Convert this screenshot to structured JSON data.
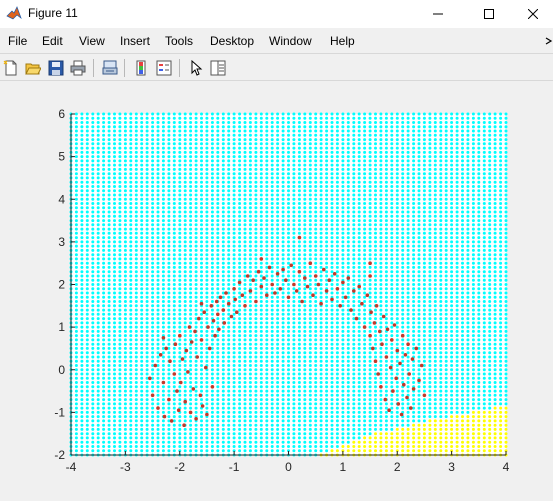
{
  "window": {
    "title": "Figure 11",
    "controls": {
      "minimize_icon": "minimize-icon",
      "maximize_icon": "maximize-icon",
      "close_icon": "close-icon"
    }
  },
  "menubar": {
    "items": [
      "File",
      "Edit",
      "View",
      "Insert",
      "Tools",
      "Desktop",
      "Window",
      "Help"
    ]
  },
  "toolbar": {
    "icons": [
      "new-figure-icon",
      "open-file-icon",
      "save-icon",
      "print-icon",
      "link-plot-icon",
      "colorbar-icon",
      "legend-icon",
      "edit-plot-icon",
      "property-editor-icon"
    ]
  },
  "colors": {
    "region_a": "#00ffff",
    "region_b": "#ffff00",
    "points": "#c0392b",
    "axes_bg": "#ffffff"
  },
  "chart_data": {
    "type": "scatter",
    "title": "",
    "xlabel": "",
    "ylabel": "",
    "xlim": [
      -4,
      4
    ],
    "ylim": [
      -2,
      6
    ],
    "xticks": [
      -4,
      -3,
      -2,
      -1,
      0,
      1,
      2,
      3,
      4
    ],
    "yticks": [
      -2,
      -1,
      0,
      1,
      2,
      3,
      4,
      5,
      6
    ],
    "grid": false,
    "background": {
      "type": "decision-region-grid",
      "x_step": 0.1,
      "y_step": 0.1,
      "regions": [
        {
          "color": "#00ffff"
        },
        {
          "color": "#ffff00",
          "boundary": [
            [
              0.6,
              -2.0
            ],
            [
              1.0,
              -1.75
            ],
            [
              1.6,
              -1.5
            ],
            [
              2.2,
              -1.3
            ],
            [
              2.8,
              -1.15
            ],
            [
              3.4,
              -1.0
            ],
            [
              4.0,
              -0.85
            ]
          ]
        }
      ]
    },
    "series": [
      {
        "color": "#c0392b",
        "marker": "dot",
        "points": [
          [
            -2.55,
            -0.2
          ],
          [
            -2.5,
            -0.6
          ],
          [
            -2.45,
            0.1
          ],
          [
            -2.4,
            -0.9
          ],
          [
            -2.35,
            0.35
          ],
          [
            -2.3,
            -0.3
          ],
          [
            -2.28,
            -1.1
          ],
          [
            -2.25,
            0.5
          ],
          [
            -2.2,
            -0.7
          ],
          [
            -2.18,
            0.2
          ],
          [
            -2.15,
            -1.2
          ],
          [
            -2.1,
            -0.1
          ],
          [
            -2.08,
            0.6
          ],
          [
            -2.05,
            -0.5
          ],
          [
            -2.02,
            -0.95
          ],
          [
            -2.0,
            0.8
          ],
          [
            -1.98,
            -0.3
          ],
          [
            -1.95,
            0.25
          ],
          [
            -1.92,
            -1.3
          ],
          [
            -1.9,
            -0.75
          ],
          [
            -1.88,
            0.45
          ],
          [
            -1.85,
            -0.05
          ],
          [
            -1.82,
            1.0
          ],
          [
            -1.8,
            -1.0
          ],
          [
            -1.78,
            0.65
          ],
          [
            -1.75,
            -0.45
          ],
          [
            -1.72,
            0.9
          ],
          [
            -1.7,
            -1.15
          ],
          [
            -1.68,
            0.3
          ],
          [
            -1.65,
            1.2
          ],
          [
            -1.62,
            -0.6
          ],
          [
            -1.6,
            0.7
          ],
          [
            -1.58,
            -0.85
          ],
          [
            -1.55,
            1.35
          ],
          [
            -1.52,
            0.05
          ],
          [
            -1.5,
            -1.05
          ],
          [
            -1.48,
            1.0
          ],
          [
            -1.45,
            0.5
          ],
          [
            -1.42,
            1.5
          ],
          [
            -1.4,
            -0.4
          ],
          [
            -1.38,
            1.15
          ],
          [
            -1.35,
            0.8
          ],
          [
            -1.32,
            1.6
          ],
          [
            -1.3,
            1.3
          ],
          [
            -1.28,
            0.95
          ],
          [
            -1.25,
            1.7
          ],
          [
            -1.2,
            1.4
          ],
          [
            -1.18,
            1.1
          ],
          [
            -1.15,
            1.8
          ],
          [
            -1.1,
            1.55
          ],
          [
            -1.05,
            1.25
          ],
          [
            -1.0,
            1.9
          ],
          [
            -0.98,
            1.65
          ],
          [
            -0.95,
            1.35
          ],
          [
            -0.9,
            2.05
          ],
          [
            -0.85,
            1.75
          ],
          [
            -0.8,
            1.5
          ],
          [
            -0.75,
            2.2
          ],
          [
            -0.7,
            1.85
          ],
          [
            -0.65,
            2.1
          ],
          [
            -0.6,
            1.6
          ],
          [
            -0.55,
            2.3
          ],
          [
            -0.5,
            1.95
          ],
          [
            -0.45,
            2.15
          ],
          [
            -0.4,
            1.75
          ],
          [
            -0.35,
            2.4
          ],
          [
            -0.3,
            2.0
          ],
          [
            -0.25,
            1.8
          ],
          [
            -0.2,
            2.25
          ],
          [
            -0.15,
            1.9
          ],
          [
            -0.1,
            2.35
          ],
          [
            -0.05,
            2.1
          ],
          [
            0.0,
            1.7
          ],
          [
            0.05,
            2.45
          ],
          [
            0.1,
            2.0
          ],
          [
            0.15,
            1.85
          ],
          [
            0.2,
            2.3
          ],
          [
            0.25,
            1.6
          ],
          [
            0.3,
            2.15
          ],
          [
            0.35,
            1.95
          ],
          [
            0.4,
            2.5
          ],
          [
            0.45,
            1.75
          ],
          [
            0.5,
            2.2
          ],
          [
            0.55,
            2.0
          ],
          [
            0.6,
            1.55
          ],
          [
            0.65,
            2.35
          ],
          [
            0.7,
            1.85
          ],
          [
            0.75,
            2.1
          ],
          [
            0.8,
            1.65
          ],
          [
            0.85,
            2.25
          ],
          [
            0.9,
            1.9
          ],
          [
            0.95,
            1.5
          ],
          [
            1.0,
            2.05
          ],
          [
            1.05,
            1.7
          ],
          [
            1.1,
            2.15
          ],
          [
            1.15,
            1.4
          ],
          [
            1.2,
            1.85
          ],
          [
            1.25,
            1.2
          ],
          [
            1.3,
            1.95
          ],
          [
            1.35,
            1.55
          ],
          [
            1.4,
            1.0
          ],
          [
            1.45,
            1.75
          ],
          [
            1.5,
            0.8
          ],
          [
            1.52,
            1.35
          ],
          [
            1.55,
            0.5
          ],
          [
            1.58,
            1.1
          ],
          [
            1.6,
            0.2
          ],
          [
            1.62,
            1.5
          ],
          [
            1.65,
            -0.1
          ],
          [
            1.68,
            0.9
          ],
          [
            1.7,
            -0.4
          ],
          [
            1.72,
            0.6
          ],
          [
            1.75,
            1.25
          ],
          [
            1.78,
            -0.7
          ],
          [
            1.8,
            0.3
          ],
          [
            1.82,
            0.95
          ],
          [
            1.85,
            -0.95
          ],
          [
            1.88,
            0.05
          ],
          [
            1.9,
            0.7
          ],
          [
            1.92,
            -0.5
          ],
          [
            1.95,
            1.05
          ],
          [
            1.98,
            -0.2
          ],
          [
            2.0,
            0.45
          ],
          [
            2.02,
            -0.8
          ],
          [
            2.05,
            0.15
          ],
          [
            2.08,
            -1.05
          ],
          [
            2.1,
            0.8
          ],
          [
            2.12,
            -0.35
          ],
          [
            2.15,
            0.35
          ],
          [
            2.18,
            -0.65
          ],
          [
            2.2,
            0.6
          ],
          [
            2.22,
            -0.1
          ],
          [
            2.25,
            -0.9
          ],
          [
            2.28,
            0.25
          ],
          [
            2.3,
            -0.45
          ],
          [
            2.35,
            0.5
          ],
          [
            2.4,
            -0.25
          ],
          [
            2.45,
            0.1
          ],
          [
            2.5,
            -0.6
          ],
          [
            1.5,
            2.2
          ],
          [
            -2.3,
            0.75
          ],
          [
            -1.6,
            1.55
          ],
          [
            0.2,
            3.1
          ],
          [
            -0.5,
            2.6
          ],
          [
            1.5,
            2.5
          ]
        ]
      }
    ]
  }
}
